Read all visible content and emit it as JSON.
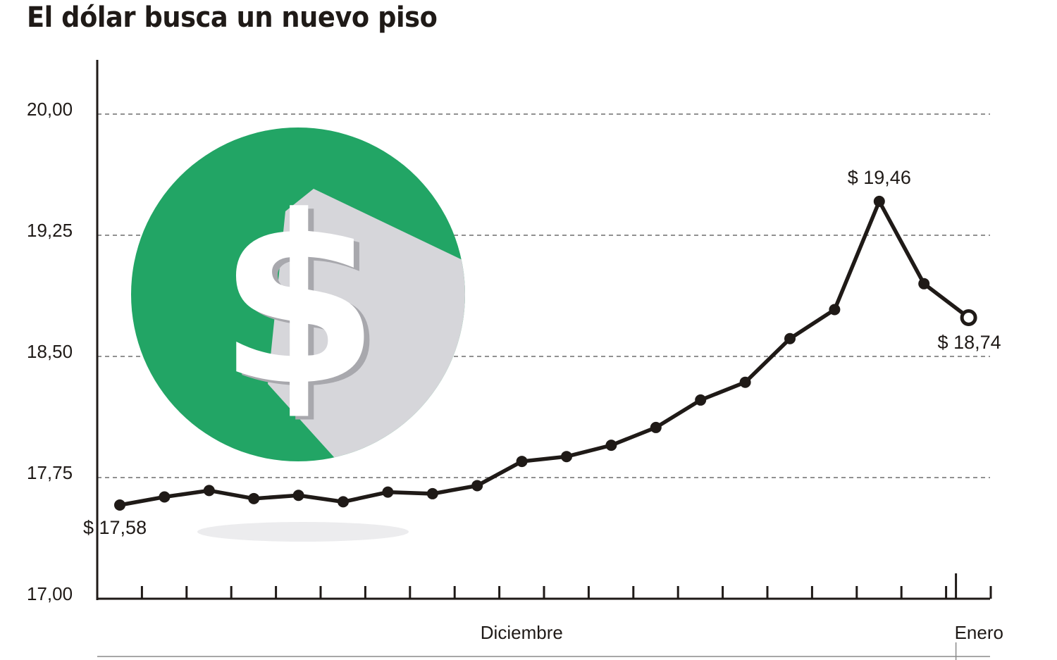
{
  "chart_data": {
    "type": "line",
    "title": "El dólar busca un nuevo piso",
    "xlabel": "",
    "ylabel": "",
    "ylim": [
      17.0,
      20.35
    ],
    "yticks": [
      {
        "value": 17.0,
        "label": "17,00"
      },
      {
        "value": 17.75,
        "label": "17,75"
      },
      {
        "value": 18.5,
        "label": "18,50"
      },
      {
        "value": 19.25,
        "label": "19,25"
      },
      {
        "value": 20.0,
        "label": "20,00"
      }
    ],
    "grid": true,
    "x_axis": {
      "tick_count": 20,
      "month_labels": [
        {
          "label": "Diciembre",
          "at_index": 9.5
        },
        {
          "label": "Enero",
          "at_index": 19.5
        }
      ],
      "month_divider_index": 19
    },
    "series": [
      {
        "values": [
          17.58,
          17.63,
          17.67,
          17.62,
          17.64,
          17.6,
          17.66,
          17.65,
          17.7,
          17.85,
          17.88,
          17.95,
          18.06,
          18.23,
          18.34,
          18.61,
          18.79,
          19.46,
          18.95,
          18.74
        ],
        "line_color": "#1f1a17",
        "last_point_style": "open-circle"
      }
    ],
    "annotations": [
      {
        "text": "$ 17,58",
        "point_index": 0,
        "position": "below"
      },
      {
        "text": "$ 19,46",
        "point_index": 17,
        "position": "above"
      },
      {
        "text": "$ 18,74",
        "point_index": 19,
        "position": "below"
      }
    ],
    "illustration": {
      "icon": "dollar-coin-icon",
      "circle_color": "#22a565",
      "shadow_color": "#d6d6da",
      "symbol_color": "#ffffff",
      "symbol_shadow": "#a8a8ad"
    }
  }
}
